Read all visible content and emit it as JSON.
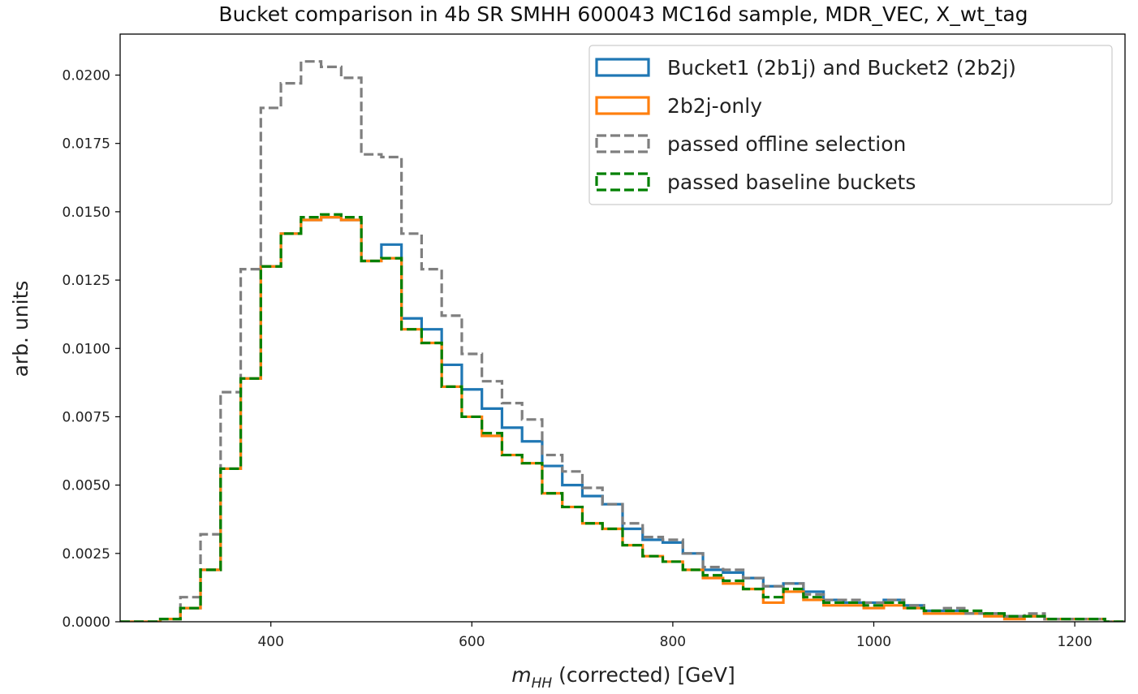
{
  "chart_data": {
    "type": "histogram-step",
    "title": "Bucket comparison in 4b SR SMHH 600043 MC16d sample, MDR_VEC, X_wt_tag",
    "xlabel_var": "m",
    "xlabel_sub": "HH",
    "xlabel_rest": " (corrected) [GeV]",
    "ylabel": "arb. units",
    "xlim": [
      250,
      1250
    ],
    "ylim": [
      0,
      0.0215
    ],
    "xticks": [
      400,
      600,
      800,
      1000,
      1200
    ],
    "xtick_labels": [
      "400",
      "600",
      "800",
      "1000",
      "1200"
    ],
    "yticks": [
      0,
      0.0025,
      0.005,
      0.0075,
      0.01,
      0.0125,
      0.015,
      0.0175,
      0.02
    ],
    "ytick_labels": [
      "0.0000",
      "0.0025",
      "0.0050",
      "0.0075",
      "0.0100",
      "0.0125",
      "0.0150",
      "0.0175",
      "0.0200"
    ],
    "legend_position": "top-right",
    "bin_edges": [
      250,
      270,
      290,
      310,
      330,
      350,
      370,
      390,
      410,
      430,
      450,
      470,
      490,
      510,
      530,
      550,
      570,
      590,
      610,
      630,
      650,
      670,
      690,
      710,
      730,
      750,
      770,
      790,
      810,
      830,
      850,
      870,
      890,
      910,
      930,
      950,
      970,
      990,
      1010,
      1030,
      1050,
      1070,
      1090,
      1110,
      1130,
      1150,
      1170,
      1190,
      1210,
      1230,
      1250
    ],
    "series": [
      {
        "name": "Bucket1 (2b1j) and Bucket2 (2b2j)",
        "color": "#1f77b4",
        "dash": "solid",
        "values": [
          0,
          0,
          0.0001,
          0.0005,
          0.0019,
          0.0056,
          0.0089,
          0.013,
          0.0142,
          0.0147,
          0.0148,
          0.0147,
          0.0132,
          0.0138,
          0.0111,
          0.0107,
          0.0094,
          0.0085,
          0.0078,
          0.0071,
          0.0066,
          0.0057,
          0.005,
          0.0046,
          0.0043,
          0.0034,
          0.003,
          0.0029,
          0.0025,
          0.0019,
          0.0018,
          0.0016,
          0.0013,
          0.0014,
          0.0011,
          0.0008,
          0.0007,
          0.0007,
          0.0008,
          0.0006,
          0.0004,
          0.0004,
          0.0003,
          0.0003,
          0.0002,
          0.0002,
          0.0001,
          0.0001,
          0.0001,
          0
        ]
      },
      {
        "name": "2b2j-only",
        "color": "#ff7f0e",
        "dash": "solid",
        "values": [
          0,
          0,
          0.0001,
          0.0005,
          0.0019,
          0.0056,
          0.0089,
          0.013,
          0.0142,
          0.0147,
          0.0148,
          0.0147,
          0.0132,
          0.0133,
          0.0107,
          0.0102,
          0.0086,
          0.0075,
          0.0068,
          0.0061,
          0.0058,
          0.0047,
          0.0042,
          0.0036,
          0.0034,
          0.0028,
          0.0024,
          0.0022,
          0.0019,
          0.0016,
          0.0014,
          0.0012,
          0.0007,
          0.0011,
          0.0008,
          0.0006,
          0.0006,
          0.0005,
          0.0006,
          0.0005,
          0.0003,
          0.0003,
          0.0003,
          0.0002,
          0.0001,
          0.0002,
          0.0001,
          0.0001,
          0.0001,
          0
        ]
      },
      {
        "name": "passed offline selection",
        "color": "#7f7f7f",
        "dash": "dashed",
        "values": [
          0,
          0,
          0.0001,
          0.0009,
          0.0032,
          0.0084,
          0.0129,
          0.0188,
          0.0197,
          0.0205,
          0.0203,
          0.0199,
          0.0171,
          0.017,
          0.0142,
          0.0129,
          0.0112,
          0.0098,
          0.0088,
          0.008,
          0.0074,
          0.0061,
          0.0055,
          0.0049,
          0.0043,
          0.0036,
          0.0031,
          0.003,
          0.0025,
          0.002,
          0.0019,
          0.0016,
          0.0013,
          0.0014,
          0.001,
          0.0008,
          0.0008,
          0.0007,
          0.0008,
          0.0006,
          0.0004,
          0.0005,
          0.0003,
          0.0003,
          0.0002,
          0.0003,
          0.0001,
          0.0001,
          0.0001,
          0
        ]
      },
      {
        "name": "passed baseline buckets",
        "color": "#008000",
        "dash": "dashed",
        "values": [
          0,
          0,
          0.0001,
          0.0005,
          0.0019,
          0.0056,
          0.0089,
          0.013,
          0.0142,
          0.0148,
          0.0149,
          0.0148,
          0.0132,
          0.0133,
          0.0107,
          0.0102,
          0.0086,
          0.0075,
          0.0069,
          0.0061,
          0.0058,
          0.0047,
          0.0042,
          0.0036,
          0.0034,
          0.0028,
          0.0024,
          0.0022,
          0.0019,
          0.0017,
          0.0015,
          0.0012,
          0.0009,
          0.0012,
          0.0009,
          0.0007,
          0.0007,
          0.0006,
          0.0007,
          0.0005,
          0.0004,
          0.0004,
          0.0004,
          0.0003,
          0.0002,
          0.0002,
          0.0001,
          0.0001,
          0.0001,
          0
        ]
      }
    ]
  }
}
